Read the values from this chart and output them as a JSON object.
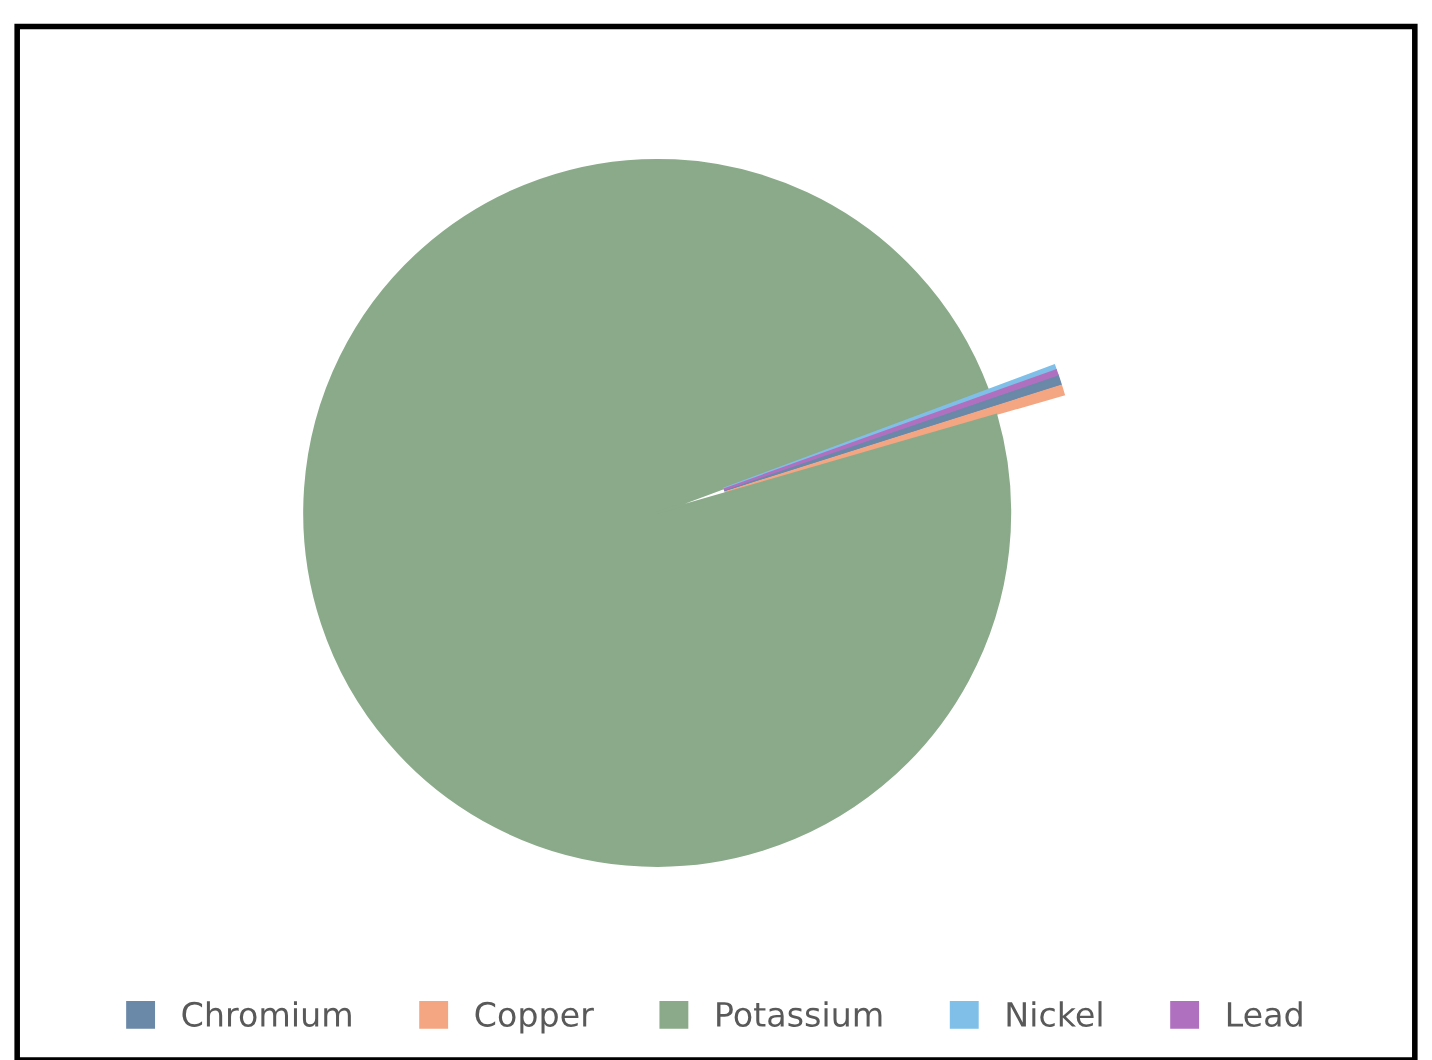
{
  "chart_data": {
    "type": "pie",
    "categories": [
      "Chromium",
      "Copper",
      "Potassium",
      "Nickel",
      "Lead"
    ],
    "values": [
      0.4,
      0.4,
      98.8,
      0.2,
      0.2
    ],
    "colors": [
      "#6a88a8",
      "#f4a582",
      "#8aaa8a",
      "#7fbfe8",
      "#b070c0"
    ],
    "legend": "bottom"
  }
}
